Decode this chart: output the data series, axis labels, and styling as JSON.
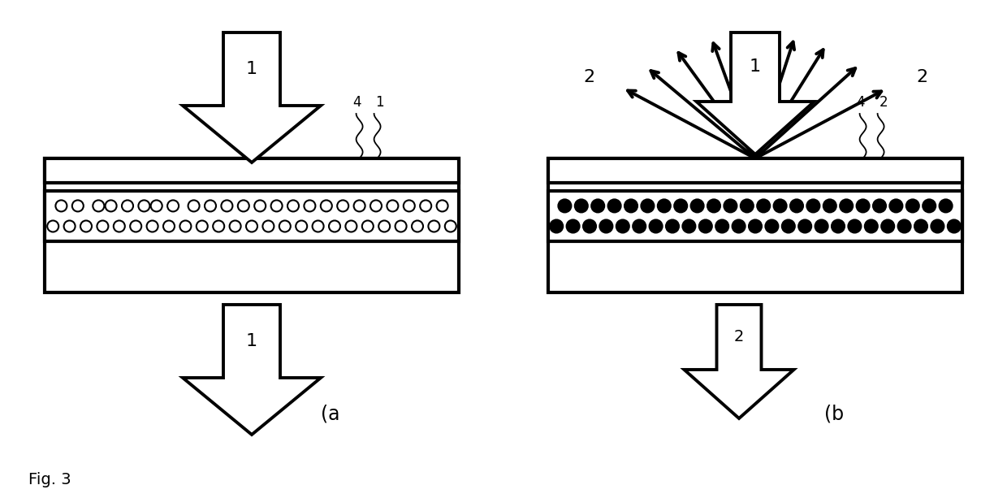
{
  "bg_color": "#ffffff",
  "fig_label": "Fig. 3",
  "panel_a_label": "(a",
  "panel_b_label": "(b"
}
